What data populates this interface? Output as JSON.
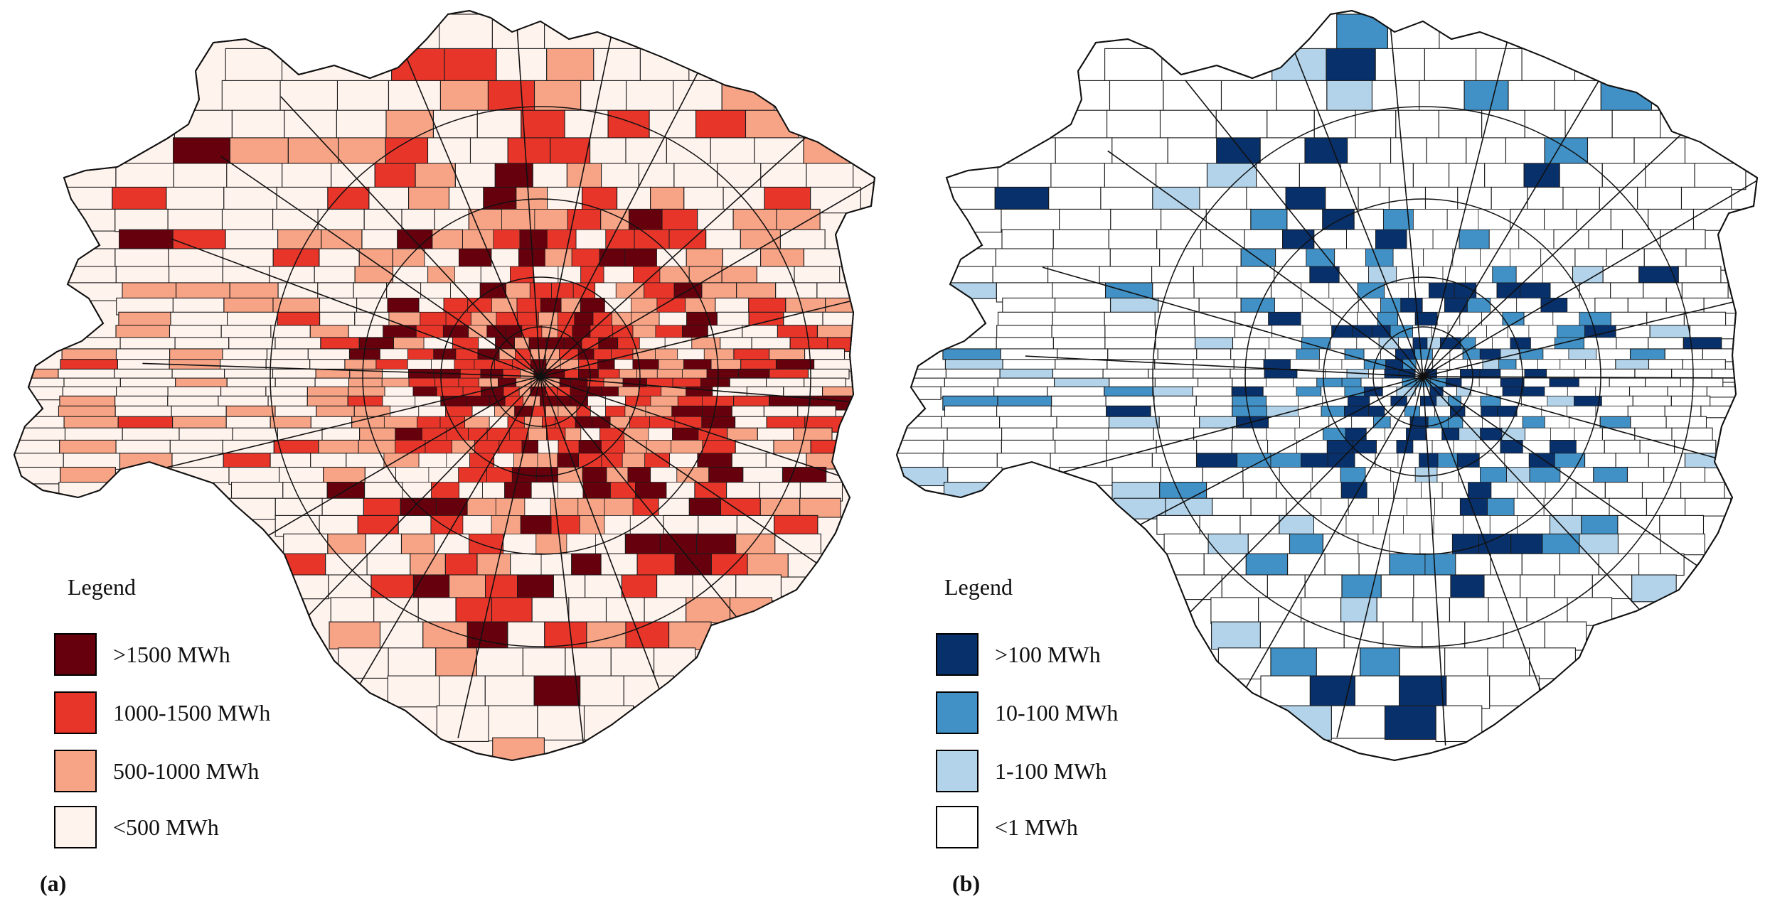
{
  "panels": [
    {
      "id": "a",
      "label": "(a)",
      "legend": {
        "title": "Legend",
        "classes": [
          {
            "label": ">1500 MWh",
            "color": "#67000d"
          },
          {
            "label": "1000-1500 MWh",
            "color": "#e8352a"
          },
          {
            "label": "500-1000 MWh",
            "color": "#f7a386"
          },
          {
            "label": "<500 MWh",
            "color": "#fff3ee"
          }
        ]
      }
    },
    {
      "id": "b",
      "label": "(b)",
      "legend": {
        "title": "Legend",
        "classes": [
          {
            "label": ">100 MWh",
            "color": "#08306b"
          },
          {
            "label": "10-100 MWh",
            "color": "#4191c6"
          },
          {
            "label": "1-100 MWh",
            "color": "#b2d3ea"
          },
          {
            "label": "<1 MWh",
            "color": "#ffffff"
          }
        ]
      }
    }
  ]
}
